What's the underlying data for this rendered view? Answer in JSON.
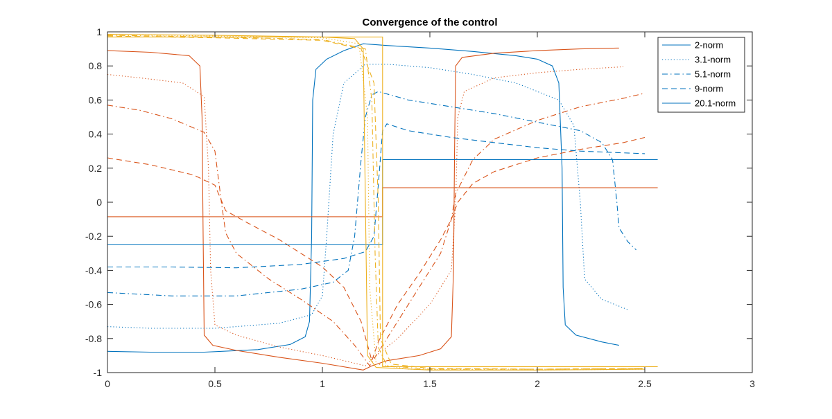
{
  "chart_data": {
    "type": "line",
    "title": "Convergence of the control",
    "xlabel": "",
    "ylabel": "",
    "xlim": [
      0,
      3
    ],
    "ylim": [
      -1,
      1
    ],
    "xticks": [
      0,
      0.5,
      1,
      1.5,
      2,
      2.5,
      3
    ],
    "xtick_labels": [
      "0",
      "0.5",
      "1",
      "1.5",
      "2",
      "2.5",
      "3"
    ],
    "yticks": [
      -1,
      -0.8,
      -0.6,
      -0.4,
      -0.2,
      0,
      0.2,
      0.4,
      0.6,
      0.8,
      1
    ],
    "ytick_labels": [
      "-1",
      "-0.8",
      "-0.6",
      "-0.4",
      "-0.2",
      "0",
      "0.2",
      "0.4",
      "0.6",
      "0.8",
      "1"
    ],
    "grid": false,
    "legend_position": "top-right",
    "legend": [
      {
        "label": "2-norm",
        "style": "solid",
        "color": "#0072BD"
      },
      {
        "label": "3.1-norm",
        "style": "dotted",
        "color": "#0072BD"
      },
      {
        "label": "5.1-norm",
        "style": "dashdot",
        "color": "#0072BD"
      },
      {
        "label": "9-norm",
        "style": "dashed",
        "color": "#0072BD"
      },
      {
        "label": "20.1-norm",
        "style": "solid",
        "color": "#0072BD"
      }
    ],
    "series": [
      {
        "color": "#0072BD",
        "style": "solid",
        "points": [
          [
            0,
            -0.875
          ],
          [
            0.2,
            -0.88
          ],
          [
            0.45,
            -0.88
          ],
          [
            0.7,
            -0.865
          ],
          [
            0.85,
            -0.835
          ],
          [
            0.92,
            -0.79
          ],
          [
            0.94,
            -0.7
          ],
          [
            0.95,
            -0.2
          ],
          [
            0.955,
            0.6
          ],
          [
            0.97,
            0.78
          ],
          [
            1.02,
            0.84
          ],
          [
            1.1,
            0.89
          ],
          [
            1.19,
            0.93
          ],
          [
            1.3,
            0.92
          ],
          [
            1.5,
            0.905
          ],
          [
            1.7,
            0.885
          ],
          [
            1.9,
            0.86
          ],
          [
            2.0,
            0.84
          ],
          [
            2.07,
            0.8
          ],
          [
            2.1,
            0.7
          ],
          [
            2.115,
            0.2
          ],
          [
            2.12,
            -0.5
          ],
          [
            2.13,
            -0.72
          ],
          [
            2.18,
            -0.78
          ],
          [
            2.3,
            -0.82
          ],
          [
            2.38,
            -0.84
          ]
        ]
      },
      {
        "color": "#D95319",
        "style": "solid",
        "points": [
          [
            0,
            0.89
          ],
          [
            0.2,
            0.88
          ],
          [
            0.38,
            0.86
          ],
          [
            0.43,
            0.8
          ],
          [
            0.44,
            0.5
          ],
          [
            0.445,
            -0.2
          ],
          [
            0.45,
            -0.78
          ],
          [
            0.49,
            -0.84
          ],
          [
            0.6,
            -0.87
          ],
          [
            0.8,
            -0.91
          ],
          [
            1.0,
            -0.945
          ],
          [
            1.19,
            -0.985
          ],
          [
            1.23,
            -0.96
          ],
          [
            1.3,
            -0.93
          ],
          [
            1.45,
            -0.9
          ],
          [
            1.55,
            -0.86
          ],
          [
            1.6,
            -0.79
          ],
          [
            1.61,
            -0.4
          ],
          [
            1.615,
            0.3
          ],
          [
            1.62,
            0.8
          ],
          [
            1.65,
            0.85
          ],
          [
            1.8,
            0.875
          ],
          [
            2.0,
            0.89
          ],
          [
            2.2,
            0.9
          ],
          [
            2.38,
            0.905
          ]
        ]
      },
      {
        "color": "#D95319",
        "style": "dotted",
        "points": [
          [
            0,
            0.75
          ],
          [
            0.15,
            0.73
          ],
          [
            0.35,
            0.7
          ],
          [
            0.45,
            0.62
          ],
          [
            0.47,
            0.2
          ],
          [
            0.48,
            -0.4
          ],
          [
            0.5,
            -0.72
          ],
          [
            0.6,
            -0.78
          ],
          [
            0.8,
            -0.85
          ],
          [
            1.0,
            -0.9
          ],
          [
            1.2,
            -0.96
          ],
          [
            1.23,
            -0.92
          ],
          [
            1.35,
            -0.8
          ],
          [
            1.5,
            -0.6
          ],
          [
            1.6,
            -0.4
          ],
          [
            1.62,
            0.0
          ],
          [
            1.63,
            0.5
          ],
          [
            1.66,
            0.65
          ],
          [
            1.8,
            0.73
          ],
          [
            2.0,
            0.76
          ],
          [
            2.2,
            0.78
          ],
          [
            2.4,
            0.795
          ]
        ]
      },
      {
        "color": "#0072BD",
        "style": "dotted",
        "points": [
          [
            0,
            -0.73
          ],
          [
            0.2,
            -0.74
          ],
          [
            0.5,
            -0.74
          ],
          [
            0.8,
            -0.71
          ],
          [
            0.95,
            -0.66
          ],
          [
            1.0,
            -0.55
          ],
          [
            1.02,
            -0.2
          ],
          [
            1.05,
            0.4
          ],
          [
            1.1,
            0.7
          ],
          [
            1.2,
            0.81
          ],
          [
            1.3,
            0.81
          ],
          [
            1.5,
            0.79
          ],
          [
            1.7,
            0.75
          ],
          [
            1.9,
            0.7
          ],
          [
            2.1,
            0.6
          ],
          [
            2.17,
            0.45
          ],
          [
            2.2,
            0.0
          ],
          [
            2.22,
            -0.45
          ],
          [
            2.3,
            -0.57
          ],
          [
            2.42,
            -0.63
          ]
        ]
      },
      {
        "color": "#D95319",
        "style": "dashdot",
        "points": [
          [
            0,
            0.57
          ],
          [
            0.15,
            0.54
          ],
          [
            0.3,
            0.49
          ],
          [
            0.45,
            0.41
          ],
          [
            0.5,
            0.3
          ],
          [
            0.53,
            0.0
          ],
          [
            0.55,
            -0.18
          ],
          [
            0.6,
            -0.3
          ],
          [
            0.75,
            -0.45
          ],
          [
            0.9,
            -0.57
          ],
          [
            1.05,
            -0.7
          ],
          [
            1.15,
            -0.84
          ],
          [
            1.22,
            -0.96
          ],
          [
            1.26,
            -0.88
          ],
          [
            1.35,
            -0.7
          ],
          [
            1.45,
            -0.5
          ],
          [
            1.55,
            -0.3
          ],
          [
            1.6,
            -0.1
          ],
          [
            1.62,
            0.05
          ],
          [
            1.7,
            0.25
          ],
          [
            1.8,
            0.37
          ],
          [
            2.0,
            0.48
          ],
          [
            2.2,
            0.56
          ],
          [
            2.4,
            0.61
          ],
          [
            2.5,
            0.64
          ]
        ]
      },
      {
        "color": "#0072BD",
        "style": "dashdot",
        "points": [
          [
            0,
            -0.53
          ],
          [
            0.3,
            -0.55
          ],
          [
            0.6,
            -0.55
          ],
          [
            0.9,
            -0.51
          ],
          [
            1.05,
            -0.47
          ],
          [
            1.12,
            -0.4
          ],
          [
            1.15,
            -0.2
          ],
          [
            1.18,
            0.25
          ],
          [
            1.2,
            0.5
          ],
          [
            1.23,
            0.63
          ],
          [
            1.26,
            0.65
          ],
          [
            1.4,
            0.6
          ],
          [
            1.6,
            0.56
          ],
          [
            1.8,
            0.52
          ],
          [
            2.0,
            0.47
          ],
          [
            2.2,
            0.42
          ],
          [
            2.3,
            0.35
          ],
          [
            2.35,
            0.25
          ],
          [
            2.37,
            0.0
          ],
          [
            2.38,
            -0.15
          ],
          [
            2.42,
            -0.23
          ],
          [
            2.46,
            -0.28
          ]
        ]
      },
      {
        "color": "#D95319",
        "style": "dashed",
        "points": [
          [
            0,
            0.26
          ],
          [
            0.2,
            0.22
          ],
          [
            0.4,
            0.16
          ],
          [
            0.5,
            0.1
          ],
          [
            0.55,
            -0.05
          ],
          [
            0.65,
            -0.12
          ],
          [
            0.8,
            -0.22
          ],
          [
            1.0,
            -0.38
          ],
          [
            1.1,
            -0.5
          ],
          [
            1.18,
            -0.7
          ],
          [
            1.23,
            -0.93
          ],
          [
            1.26,
            -0.82
          ],
          [
            1.35,
            -0.6
          ],
          [
            1.45,
            -0.42
          ],
          [
            1.55,
            -0.22
          ],
          [
            1.6,
            -0.1
          ],
          [
            1.63,
            0.0
          ],
          [
            1.7,
            0.11
          ],
          [
            1.8,
            0.18
          ],
          [
            2.0,
            0.26
          ],
          [
            2.2,
            0.31
          ],
          [
            2.4,
            0.35
          ],
          [
            2.5,
            0.38
          ]
        ]
      },
      {
        "color": "#0072BD",
        "style": "dashed",
        "points": [
          [
            0,
            -0.38
          ],
          [
            0.3,
            -0.38
          ],
          [
            0.6,
            -0.385
          ],
          [
            0.9,
            -0.365
          ],
          [
            1.1,
            -0.33
          ],
          [
            1.2,
            -0.29
          ],
          [
            1.24,
            -0.2
          ],
          [
            1.26,
            0.1
          ],
          [
            1.28,
            0.42
          ],
          [
            1.3,
            0.46
          ],
          [
            1.4,
            0.42
          ],
          [
            1.6,
            0.38
          ],
          [
            1.8,
            0.35
          ],
          [
            2.0,
            0.32
          ],
          [
            2.2,
            0.3
          ],
          [
            2.4,
            0.29
          ],
          [
            2.5,
            0.285
          ]
        ]
      },
      {
        "color": "#0072BD",
        "style": "solid",
        "points": [
          [
            0,
            -0.25
          ],
          [
            1.28,
            -0.25
          ],
          [
            1.28,
            0.25
          ],
          [
            2.56,
            0.25
          ]
        ]
      },
      {
        "color": "#D95319",
        "style": "solid",
        "points": [
          [
            0,
            -0.085
          ],
          [
            1.28,
            -0.085
          ],
          [
            1.28,
            0.085
          ],
          [
            2.56,
            0.085
          ]
        ]
      },
      {
        "color": "#EDB120",
        "style": "solid",
        "points": [
          [
            0,
            0.97
          ],
          [
            1.28,
            0.97
          ],
          [
            1.28,
            -0.965
          ],
          [
            2.56,
            -0.965
          ]
        ]
      },
      {
        "color": "#EDB120",
        "style": "solid",
        "points": [
          [
            0,
            0.985
          ],
          [
            0.5,
            0.98
          ],
          [
            1.0,
            0.97
          ],
          [
            1.15,
            0.96
          ],
          [
            1.19,
            0.9
          ],
          [
            1.2,
            0.0
          ],
          [
            1.21,
            -0.9
          ],
          [
            1.25,
            -0.97
          ],
          [
            1.5,
            -0.985
          ],
          [
            2.0,
            -0.985
          ],
          [
            2.5,
            -0.98
          ]
        ]
      },
      {
        "color": "#EDB120",
        "style": "dotted",
        "points": [
          [
            0,
            0.985
          ],
          [
            0.5,
            0.975
          ],
          [
            1.0,
            0.965
          ],
          [
            1.17,
            0.93
          ],
          [
            1.21,
            0.5
          ],
          [
            1.22,
            -0.5
          ],
          [
            1.25,
            -0.95
          ],
          [
            1.4,
            -0.98
          ],
          [
            2.0,
            -0.985
          ],
          [
            2.5,
            -0.98
          ]
        ]
      },
      {
        "color": "#EDB120",
        "style": "dashdot",
        "points": [
          [
            0,
            0.98
          ],
          [
            0.5,
            0.97
          ],
          [
            1.0,
            0.955
          ],
          [
            1.2,
            0.9
          ],
          [
            1.23,
            0.6
          ],
          [
            1.245,
            -0.3
          ],
          [
            1.26,
            -0.85
          ],
          [
            1.3,
            -0.96
          ],
          [
            1.5,
            -0.98
          ],
          [
            2.0,
            -0.98
          ],
          [
            2.5,
            -0.975
          ]
        ]
      },
      {
        "color": "#EDB120",
        "style": "dashed",
        "points": [
          [
            0,
            0.975
          ],
          [
            0.5,
            0.965
          ],
          [
            1.0,
            0.95
          ],
          [
            1.18,
            0.9
          ],
          [
            1.24,
            0.7
          ],
          [
            1.26,
            0.0
          ],
          [
            1.27,
            -0.8
          ],
          [
            1.32,
            -0.95
          ],
          [
            1.5,
            -0.975
          ],
          [
            2.0,
            -0.98
          ],
          [
            2.5,
            -0.975
          ]
        ]
      }
    ]
  }
}
